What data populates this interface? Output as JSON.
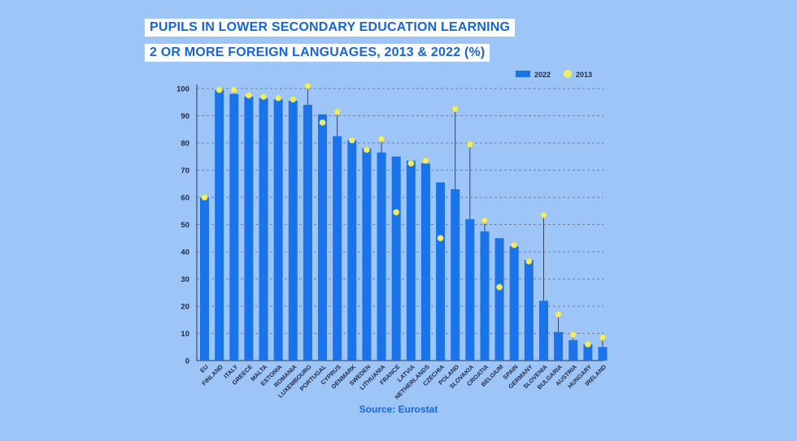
{
  "title_line1": "PUPILS IN LOWER SECONDARY EDUCATION LEARNING",
  "title_line2": "2 OR MORE FOREIGN LANGUAGES, 2013 & 2022 (%)",
  "source": "Source: Eurostat",
  "colors": {
    "background": "#9ec5f8",
    "bar": "#1a73e8",
    "dot": "#f2ee63",
    "title": "#1565e0",
    "grid": "#5a6e8a"
  },
  "chart_data": {
    "type": "bar",
    "ylim": [
      0,
      100
    ],
    "yticks": [
      0,
      10,
      20,
      30,
      40,
      50,
      60,
      70,
      80,
      90,
      100
    ],
    "grid": true,
    "legend_position": "top-right",
    "categories": [
      "EU",
      "FINLAND",
      "ITALY",
      "GREECE",
      "MALTA",
      "ESTONIA",
      "ROMANIA",
      "LUXEMBOURG",
      "PORTUGAL",
      "CYPRUS",
      "DENMARK",
      "SWEDEN",
      "LITHUANIA",
      "FRANCE",
      "LATVIA",
      "NETHERLANDS",
      "CZECHIA",
      "POLAND",
      "SLOVAKIA",
      "CROATIA",
      "BELGIUM",
      "SPAIN",
      "GERMANY",
      "SLOVENIA",
      "BULGARIA",
      "AUSTRIA",
      "HUNGARY",
      "IRELAND"
    ],
    "series": [
      {
        "name": "2022",
        "marker": "bar",
        "values": [
          60.0,
          99.5,
          98.0,
          97.0,
          96.5,
          96.0,
          95.5,
          94.0,
          90.5,
          82.5,
          81.0,
          78.0,
          76.5,
          75.0,
          73.5,
          72.5,
          65.5,
          63.0,
          52.0,
          47.5,
          45.0,
          42.0,
          37.0,
          22.0,
          10.5,
          7.5,
          6.0,
          5.0
        ]
      },
      {
        "name": "2013",
        "marker": "dot",
        "values": [
          60.0,
          99.5,
          99.5,
          97.5,
          97.0,
          96.5,
          96.0,
          101.0,
          87.5,
          91.5,
          81.0,
          77.5,
          81.5,
          54.5,
          72.5,
          73.5,
          45.0,
          92.5,
          79.5,
          51.5,
          27.0,
          42.5,
          36.5,
          53.5,
          17.0,
          9.5,
          6.0,
          8.5
        ]
      }
    ]
  }
}
